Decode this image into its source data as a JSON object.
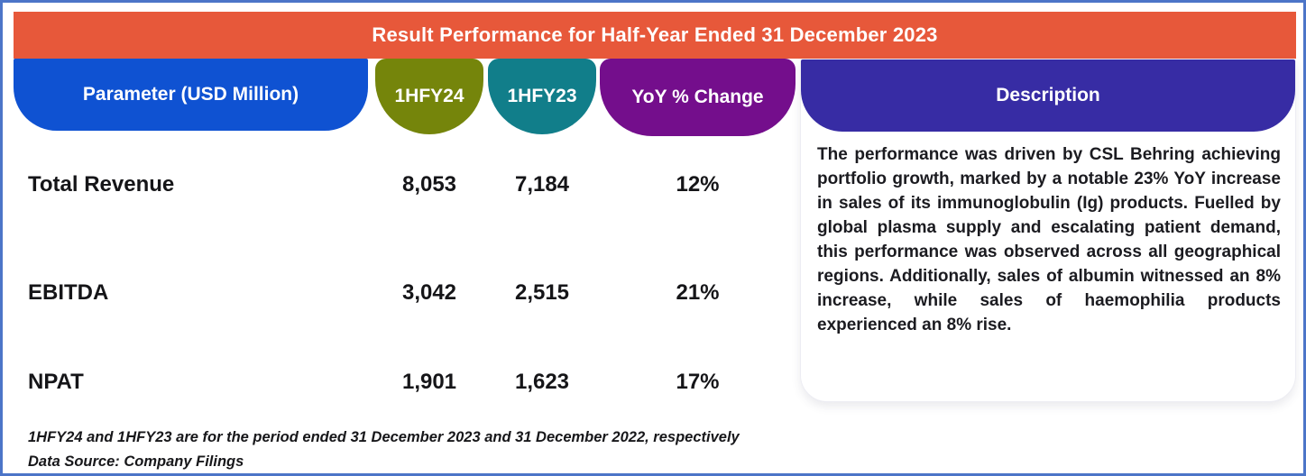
{
  "header": {
    "title": "Result Performance for Half-Year Ended 31 December 2023"
  },
  "columns": {
    "parameter": {
      "label": "Parameter (USD Million)",
      "color": "#0F52D2"
    },
    "hfy24": {
      "label": "1HFY24",
      "color": "#75850B"
    },
    "hfy23": {
      "label": "1HFY23",
      "color": "#117E8A"
    },
    "yoy": {
      "label": "YoY % Change",
      "color": "#740E8C"
    },
    "description": {
      "label": "Description",
      "color": "#372CA4"
    }
  },
  "table": {
    "rows": [
      {
        "parameter": "Total Revenue",
        "hfy24": "8,053",
        "hfy23": "7,184",
        "yoy": "12%"
      },
      {
        "parameter": "EBITDA",
        "hfy24": "3,042",
        "hfy23": "2,515",
        "yoy": "21%"
      },
      {
        "parameter": "NPAT",
        "hfy24": "1,901",
        "hfy23": "1,623",
        "yoy": "17%"
      }
    ]
  },
  "description": {
    "text": "The performance was driven by CSL Behring achieving portfolio growth, marked by a notable 23% YoY increase in sales of its immunoglobulin (Ig) products. Fuelled by global plasma supply and escalating patient demand, this performance was observed across all geographical regions. Additionally, sales of albumin witnessed an 8% increase, while sales of haemophilia products experienced an 8% rise."
  },
  "footnotes": {
    "period_note": "1HFY24 and 1HFY23 are for the period ended 31 December 2023 and 31 December 2022, respectively",
    "source_note": "Data Source: Company Filings"
  },
  "colors": {
    "header_bar": "#E7583A",
    "frame_border": "#4C75C8",
    "text": "#151518"
  },
  "chart_data": {
    "type": "table",
    "title": "Result Performance for Half-Year Ended 31 December 2023",
    "columns": [
      "Parameter (USD Million)",
      "1HFY24",
      "1HFY23",
      "YoY % Change"
    ],
    "rows": [
      [
        "Total Revenue",
        8053,
        7184,
        "12%"
      ],
      [
        "EBITDA",
        3042,
        2515,
        "21%"
      ],
      [
        "NPAT",
        1901,
        1623,
        "17%"
      ]
    ],
    "notes": [
      "1HFY24 and 1HFY23 are for the period ended 31 December 2023 and 31 December 2022, respectively",
      "Data Source: Company Filings"
    ]
  }
}
